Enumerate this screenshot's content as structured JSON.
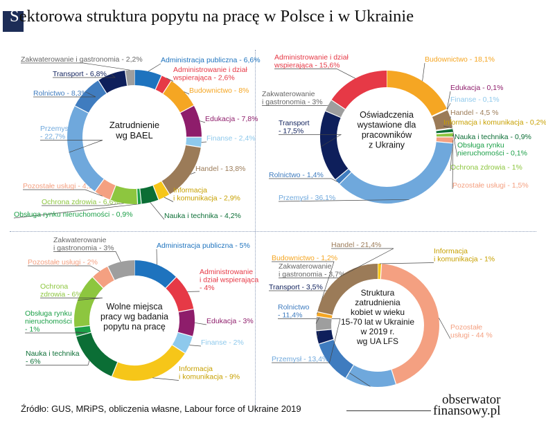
{
  "header": {
    "title_first": "S",
    "title_rest": "ektorowa struktura popytu na pracę w Polsce i w Ukrainie"
  },
  "footer": {
    "source": "Źródło: GUS, MRiPS, obliczenia własne, Labour force of Ukraine 2019",
    "logo_line1": "obserwator",
    "logo_line2": "finansowy.pl"
  },
  "colors": {
    "title_box": "#1d2d57",
    "label_text": "#1f3f7a"
  },
  "chart_data": [
    {
      "type": "pie",
      "donut": true,
      "center_label": [
        "Zatrudnienie",
        "wg BAEL"
      ],
      "slices": [
        {
          "name": "Administracja publiczna",
          "label": [
            "Administracja publiczna - 6,6%"
          ],
          "value": 6.6,
          "color": "#1e73be"
        },
        {
          "name": "Administrowanie i dział wspierająca",
          "label": [
            "Administrowanie i dział",
            "wspierająca - 2,6%"
          ],
          "value": 2.6,
          "color": "#e63946"
        },
        {
          "name": "Budownictwo",
          "label": [
            "Budownictwo - 8%"
          ],
          "value": 8,
          "color": "#f5a623"
        },
        {
          "name": "Edukacja",
          "label": [
            "Edukacja - 7,8%"
          ],
          "value": 7.8,
          "color": "#8e1d6b"
        },
        {
          "name": "Finanse",
          "label": [
            "Finanse - 2,4%"
          ],
          "value": 2.4,
          "color": "#8ec9ec"
        },
        {
          "name": "Handel",
          "label": [
            "Handel - 13,8%"
          ],
          "value": 13.8,
          "color": "#9b7b58"
        },
        {
          "name": "Informacja i komunikacja",
          "label": [
            "Informacja",
            "i komunikacja - 2,9%"
          ],
          "value": 2.9,
          "color": "#f6c619"
        },
        {
          "name": "Nauka i technika",
          "label": [
            "Nauka i technika - 4,2%"
          ],
          "value": 4.2,
          "color": "#0b6e35"
        },
        {
          "name": "Obsługa rynku nieruchomości",
          "label": [
            "Obsługa rynku nieruchomości - 0,9%"
          ],
          "value": 0.9,
          "color": "#1b9f47"
        },
        {
          "name": "Ochrona zdrowia",
          "label": [
            "Ochrona zdrowia - 6,6%"
          ],
          "value": 6.6,
          "color": "#8dc63f"
        },
        {
          "name": "Pozostałe usługi",
          "label": [
            "Pozostałe usługi - 4,1%"
          ],
          "value": 4.1,
          "color": "#f4a081"
        },
        {
          "name": "Przemysł",
          "label": [
            "Przemysł",
            "- 22,7%"
          ],
          "value": 22.7,
          "color": "#6fa8dc"
        },
        {
          "name": "Rolnictwo",
          "label": [
            "Rolnictwo - 8,3%"
          ],
          "value": 8.3,
          "color": "#3f7cbf"
        },
        {
          "name": "Transport",
          "label": [
            "Transport - 6,8%"
          ],
          "value": 6.8,
          "color": "#0e1f5b"
        },
        {
          "name": "Zakwaterowanie i gastronomia",
          "label": [
            "Zakwaterowanie i gastronomia - 2,2%"
          ],
          "value": 2.2,
          "color": "#9e9e9e"
        }
      ]
    },
    {
      "type": "pie",
      "donut": true,
      "center_label": [
        "Oświadczenia",
        "wystawione dla",
        "pracowników",
        "z Ukrainy"
      ],
      "slices": [
        {
          "name": "Budownictwo",
          "label": [
            "Budownictwo - 18,1%"
          ],
          "value": 18.1,
          "color": "#f5a623"
        },
        {
          "name": "Edukacja",
          "label": [
            "Edukacja - 0,1%"
          ],
          "value": 0.1,
          "color": "#8e1d6b"
        },
        {
          "name": "Finanse",
          "label": [
            "Finanse - 0,1%"
          ],
          "value": 0.1,
          "color": "#8ec9ec"
        },
        {
          "name": "Handel",
          "label": [
            "Handel - 4,5 %"
          ],
          "value": 4.5,
          "color": "#9b7b58"
        },
        {
          "name": "Informacja i komunikacja",
          "label": [
            "Informacja i komunikacja - 0,2%"
          ],
          "value": 0.2,
          "color": "#f6c619"
        },
        {
          "name": "Nauka i technika",
          "label": [
            "Nauka i technika - 0,9%"
          ],
          "value": 0.9,
          "color": "#0b6e35"
        },
        {
          "name": "Obsługa rynku nieruchomości",
          "label": [
            "Obsługa rynku",
            "nieruchomości - 0,1%"
          ],
          "value": 0.1,
          "color": "#1b9f47"
        },
        {
          "name": "Ochrona zdrowia",
          "label": [
            "Ochrona zdrowia - 1%"
          ],
          "value": 1,
          "color": "#8dc63f"
        },
        {
          "name": "Pozostałe usługi",
          "label": [
            "Pozostałe usługi - 1,5%"
          ],
          "value": 1.5,
          "color": "#f4a081"
        },
        {
          "name": "Przemysł",
          "label": [
            "Przemysł - 36,1%"
          ],
          "value": 36.1,
          "color": "#6fa8dc"
        },
        {
          "name": "Rolnictwo",
          "label": [
            "Rolnictwo - 1,4%"
          ],
          "value": 1.4,
          "color": "#3f7cbf"
        },
        {
          "name": "Transport",
          "label": [
            "Transport",
            "- 17,5%"
          ],
          "value": 17.5,
          "color": "#0e1f5b"
        },
        {
          "name": "Zakwaterowanie i gastronomia",
          "label": [
            "Zakwaterowanie",
            "i gastronomia - 3%"
          ],
          "value": 3,
          "color": "#9e9e9e"
        },
        {
          "name": "Administrowanie i dział wspierająca",
          "label": [
            "Administrowanie i dział",
            "wspierająca - 15,6%"
          ],
          "value": 15.6,
          "color": "#e63946"
        }
      ]
    },
    {
      "type": "pie",
      "donut": true,
      "center_label": [
        "Wolne miejsca",
        "pracy wg badania",
        "popytu na pracę"
      ],
      "slices": [
        {
          "name": "Administracja publiczna",
          "label": [
            "Administracja publiczna - 5%"
          ],
          "value": 5,
          "color": "#1e73be"
        },
        {
          "name": "Administrowanie i dział wspierająca",
          "label": [
            "Administrowanie",
            "i dział wspierająca",
            "- 4%"
          ],
          "value": 4,
          "color": "#e63946"
        },
        {
          "name": "Edukacja",
          "label": [
            "Edukacja - 3%"
          ],
          "value": 3,
          "color": "#8e1d6b"
        },
        {
          "name": "Finanse",
          "label": [
            "Finanse - 2%"
          ],
          "value": 2,
          "color": "#8ec9ec"
        },
        {
          "name": "Informacja i komunikacja",
          "label": [
            "Informacja",
            "i komunikacja - 9%"
          ],
          "value": 9,
          "color": "#f6c619"
        },
        {
          "name": "Nauka i technika",
          "label": [
            "Nauka i technika",
            "- 6%"
          ],
          "value": 6,
          "color": "#0b6e35"
        },
        {
          "name": "Obsługa rynku nieruchomości",
          "label": [
            "Obsługa rynku",
            "nieruchomości",
            "- 1%"
          ],
          "value": 1,
          "color": "#1b9f47"
        },
        {
          "name": "Ochrona zdrowia",
          "label": [
            "Ochrona",
            "zdrowia - 6%"
          ],
          "value": 6,
          "color": "#8dc63f"
        },
        {
          "name": "Pozostałe usługi",
          "label": [
            "Pozostałe usługi - 2%"
          ],
          "value": 2,
          "color": "#f4a081"
        },
        {
          "name": "Zakwaterowanie i gastronomia",
          "label": [
            "Zakwaterowanie",
            "i gastronomia - 3%"
          ],
          "value": 3,
          "color": "#9e9e9e"
        }
      ]
    },
    {
      "type": "pie",
      "donut": true,
      "center_label": [
        "Struktura",
        "zatrudnienia",
        "kobiet w wieku",
        "15-70 lat w Ukrainie",
        "w 2019 r.",
        "wg UA LFS"
      ],
      "slices": [
        {
          "name": "Informacja i komunikacja",
          "label": [
            "Informacja",
            "i komunikacja - 1%"
          ],
          "value": 1,
          "color": "#f6c619"
        },
        {
          "name": "Pozostałe usługi",
          "label": [
            "Pozostałe",
            "usługi - 44 %"
          ],
          "value": 44,
          "color": "#f4a081"
        },
        {
          "name": "Przemysł",
          "label": [
            "Przemysł - 13,4%"
          ],
          "value": 13.4,
          "color": "#6fa8dc"
        },
        {
          "name": "Rolnictwo",
          "label": [
            "Rolnictwo",
            "- 11,4%"
          ],
          "value": 11.4,
          "color": "#3f7cbf"
        },
        {
          "name": "Transport",
          "label": [
            "Transport - 3,5%"
          ],
          "value": 3.5,
          "color": "#0e1f5b"
        },
        {
          "name": "Zakwaterowanie i gastronomia",
          "label": [
            "Zakwaterowanie",
            "i gastronomia - 3,7%"
          ],
          "value": 3.7,
          "color": "#9e9e9e"
        },
        {
          "name": "Budownictwo",
          "label": [
            "Budownictwo - 1,2%"
          ],
          "value": 1.2,
          "color": "#f5a623"
        },
        {
          "name": "Handel",
          "label": [
            "Handel - 21,4%"
          ],
          "value": 21.4,
          "color": "#9b7b58"
        }
      ]
    }
  ]
}
